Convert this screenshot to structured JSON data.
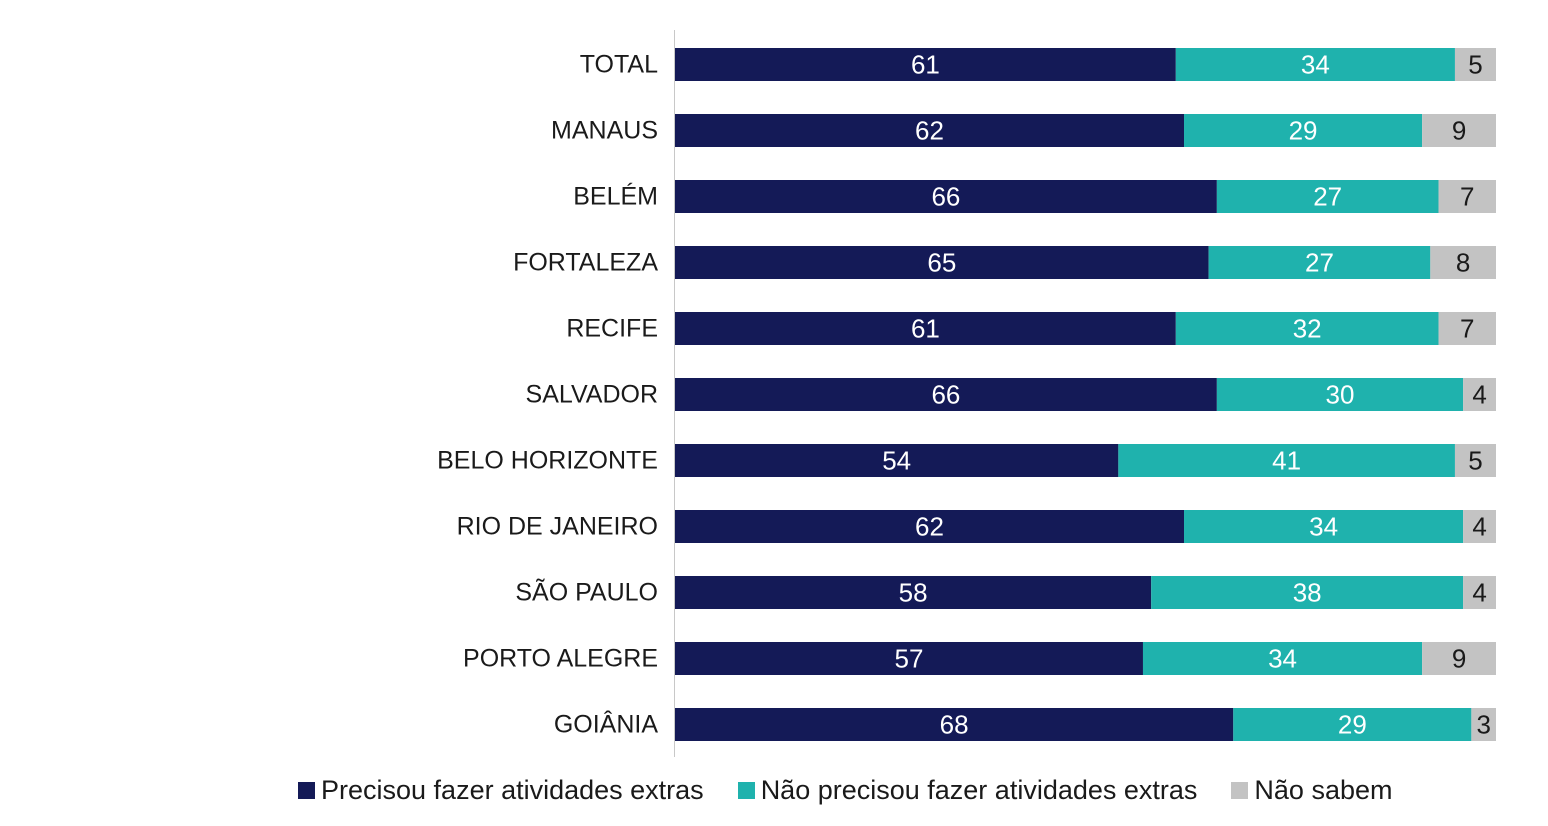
{
  "chart_data": {
    "type": "bar",
    "orientation": "horizontal",
    "stacked": true,
    "categories": [
      "TOTAL",
      "MANAUS",
      "BELÉM",
      "FORTALEZA",
      "RECIFE",
      "SALVADOR",
      "BELO HORIZONTE",
      "RIO DE JANEIRO",
      "SÃO PAULO",
      "PORTO ALEGRE",
      "GOIÂNIA"
    ],
    "series": [
      {
        "name": "Precisou fazer atividades extras",
        "color": "#141a57",
        "label_color": "#ffffff",
        "values": [
          61,
          62,
          66,
          65,
          61,
          66,
          54,
          62,
          58,
          57,
          68
        ]
      },
      {
        "name": "Não precisou fazer atividades extras",
        "color": "#1fb2ad",
        "label_color": "#ffffff",
        "values": [
          34,
          29,
          27,
          27,
          32,
          30,
          41,
          34,
          38,
          34,
          29
        ]
      },
      {
        "name": "Não sabem",
        "color": "#c3c3c3",
        "label_color": "#1a1a1a",
        "values": [
          5,
          9,
          7,
          8,
          7,
          4,
          5,
          4,
          4,
          9,
          3
        ]
      }
    ],
    "xlim": [
      0,
      100
    ],
    "grid": false,
    "legend_position": "bottom"
  }
}
